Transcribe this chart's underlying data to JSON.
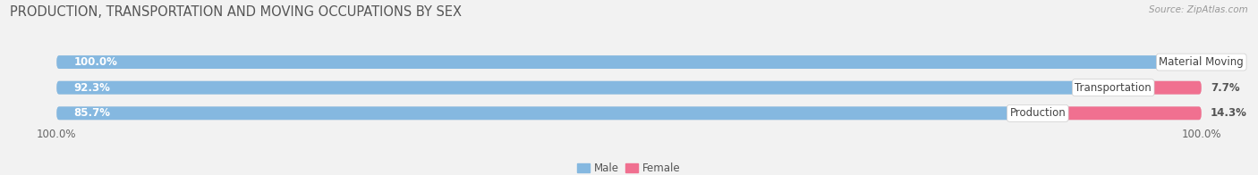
{
  "title": "PRODUCTION, TRANSPORTATION AND MOVING OCCUPATIONS BY SEX",
  "source": "Source: ZipAtlas.com",
  "categories": [
    "Material Moving",
    "Transportation",
    "Production"
  ],
  "male_values": [
    100.0,
    92.3,
    85.7
  ],
  "female_values": [
    0.0,
    7.7,
    14.3
  ],
  "male_color": "#85b8e0",
  "female_color": "#f07090",
  "bg_color": "#f0f0f0",
  "bar_bg_color": "#e0e0e0",
  "bar_bg_inner": "#ebebeb",
  "title_fontsize": 10.5,
  "tick_fontsize": 8.5,
  "bar_label_fontsize": 8.5,
  "cat_fontsize": 8.5,
  "source_fontsize": 7.5
}
